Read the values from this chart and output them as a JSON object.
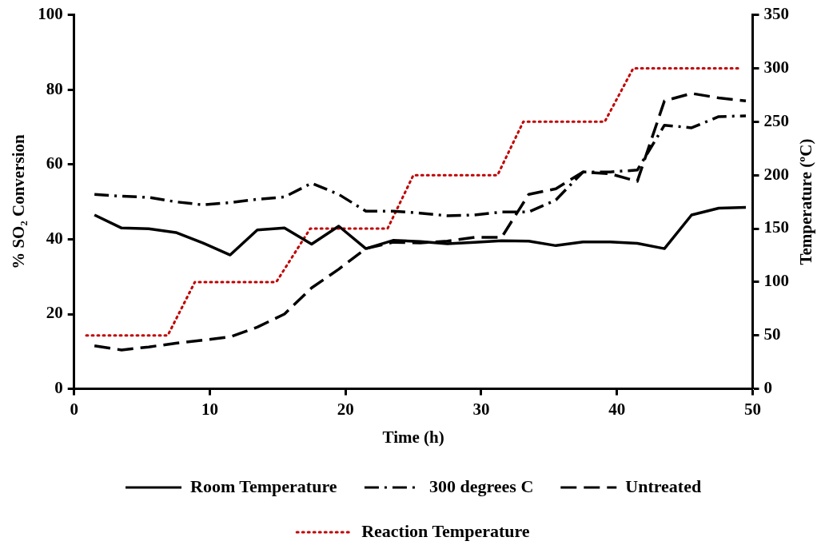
{
  "chart_data": {
    "type": "line",
    "xlabel": "Time (h)",
    "ylabel": "% SO₂ Conversion",
    "y2label": "Temperature (ºC)",
    "xlim": [
      0,
      50
    ],
    "xticks": [
      0,
      10,
      20,
      30,
      40,
      50
    ],
    "ylim": [
      0,
      100
    ],
    "yticks": [
      0,
      20,
      40,
      60,
      80,
      100
    ],
    "y2lim": [
      0,
      350
    ],
    "y2ticks": [
      0,
      50,
      100,
      150,
      200,
      250,
      300,
      350
    ],
    "grid": false,
    "legend": "bottom",
    "marker": "none",
    "x": [
      1.5,
      3.5,
      5.5,
      7.5,
      9.5,
      11.5,
      13.5,
      15.5,
      17.5,
      19.5,
      21.5,
      23.5,
      25.5,
      27.5,
      29.5,
      31.5,
      33.5,
      35.5,
      37.5,
      39.5,
      41.5,
      43.5,
      45.5,
      47.5,
      49.5
    ],
    "series": [
      {
        "name": "Room Temperature",
        "color": "#000000",
        "line_style": "solid",
        "values": [
          46.5,
          43,
          42.8,
          41.8,
          39,
          35.8,
          42.5,
          43,
          38.7,
          43.5,
          37.5,
          39.7,
          39.4,
          38.8,
          39.2,
          39.6,
          39.5,
          38.3,
          39.3,
          39.3,
          38.9,
          37.5,
          46.5,
          48.3,
          48.5
        ]
      },
      {
        "name": "300 degrees C",
        "color": "#000000",
        "line_style": "dashdot",
        "values": [
          52,
          51.5,
          51.2,
          50,
          49.2,
          49.8,
          50.7,
          51.3,
          55,
          52,
          47.5,
          47.5,
          47,
          46.3,
          46.5,
          47.3,
          47.3,
          50.5,
          58,
          58,
          58.5,
          70.5,
          69.8,
          72.8,
          73
        ]
      },
      {
        "name": "Untreated",
        "color": "#000000",
        "line_style": "dashed",
        "values": [
          11.5,
          10.4,
          11.2,
          12.2,
          13,
          13.9,
          16.5,
          20,
          27,
          32,
          37.5,
          39.2,
          39,
          39.5,
          40.5,
          40.5,
          52,
          53.5,
          58,
          57.5,
          55.5,
          77,
          79,
          77.8,
          77
        ]
      },
      {
        "name": "Reaction Temperature",
        "color": "#c00000",
        "line_style": "dotted",
        "axis": "y2",
        "x": [
          0.9,
          6.9,
          8.9,
          14.9,
          17.4,
          23.1,
          25,
          31.2,
          33.1,
          39.1,
          41.2,
          49.1
        ],
        "values": [
          50,
          50,
          100,
          100,
          150,
          150,
          200,
          200,
          250,
          250,
          300,
          300
        ]
      }
    ]
  }
}
